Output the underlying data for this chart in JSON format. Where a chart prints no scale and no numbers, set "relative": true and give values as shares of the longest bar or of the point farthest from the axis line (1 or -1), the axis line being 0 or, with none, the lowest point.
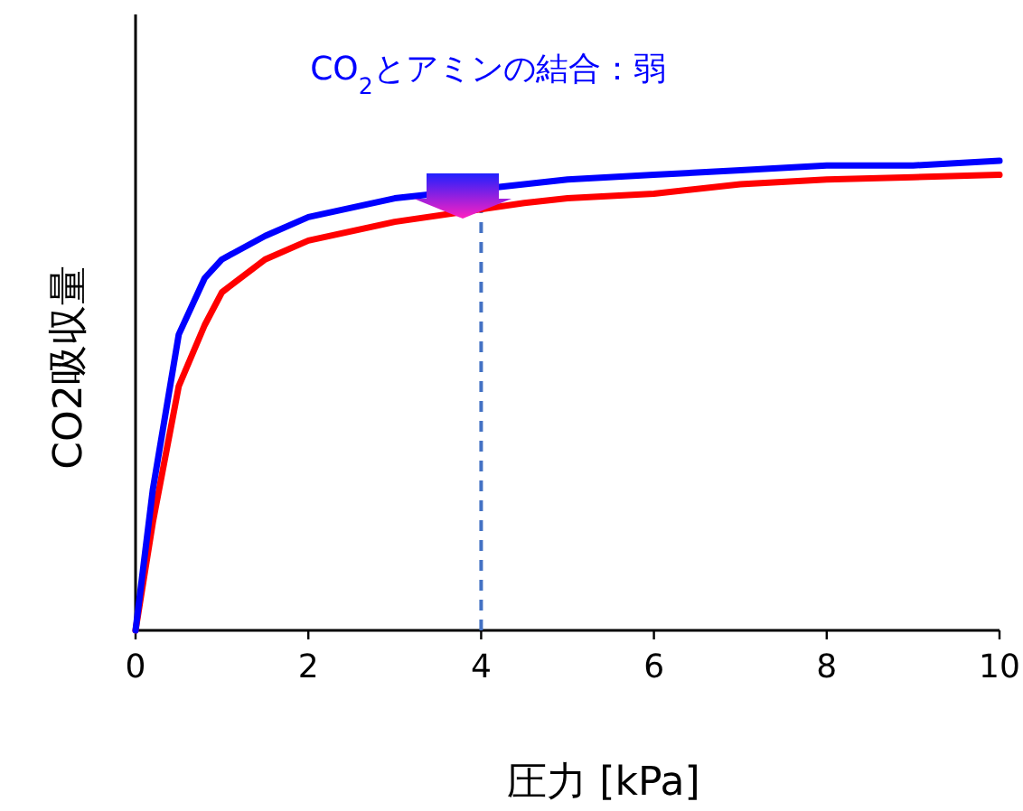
{
  "chart_data": {
    "type": "line",
    "title": "CO$_{2}$とアミンの結合：弱",
    "xlabel": "圧力 [kPa]",
    "ylabel": "CO2吸収量",
    "relative": true,
    "line_style": "solid",
    "xlim": [
      0,
      10
    ],
    "xticks": [
      0,
      2,
      4,
      6,
      8,
      10
    ],
    "x": [
      0,
      0.2,
      0.5,
      0.8,
      1,
      1.5,
      2,
      3,
      4.5,
      5,
      6,
      7,
      8,
      9,
      10
    ],
    "series": [
      {
        "color": "#0000ff",
        "values": [
          0,
          0.3,
          0.63,
          0.75,
          0.79,
          0.84,
          0.88,
          0.92,
          0.95,
          0.96,
          0.97,
          0.98,
          0.99,
          0.99,
          1
        ]
      },
      {
        "color": "#ff0000",
        "values": [
          0,
          0.23,
          0.52,
          0.65,
          0.72,
          0.79,
          0.83,
          0.87,
          0.91,
          0.92,
          0.93,
          0.95,
          0.96,
          0.965,
          0.97
        ]
      }
    ],
    "ref_lines": [
      {
        "axis": "x",
        "value": 4,
        "color": "#4472c4",
        "line_style": "dashed"
      }
    ]
  }
}
